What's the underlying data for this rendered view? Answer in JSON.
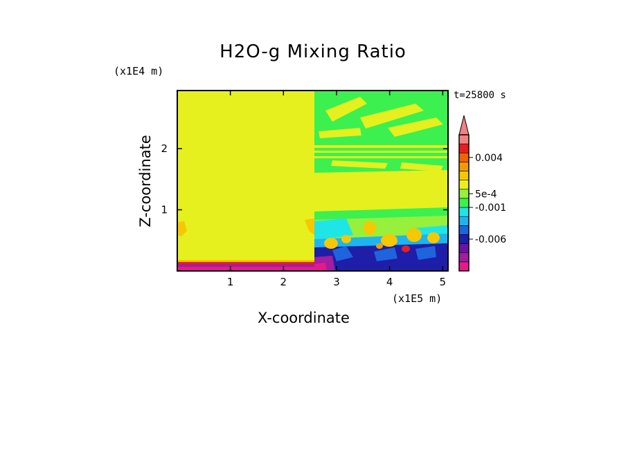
{
  "chart_data": {
    "type": "heatmap",
    "title": "H2O-g Mixing Ratio",
    "xlabel": "X-coordinate",
    "ylabel": "Z-coordinate",
    "x_unit": "(x1E5 m)",
    "y_unit": "(x1E4 m)",
    "time_label": "t=25800 s",
    "xlim": [
      0,
      5.1
    ],
    "ylim": [
      0,
      2.95
    ],
    "x_ticks": [
      "1",
      "2",
      "3",
      "4",
      "5"
    ],
    "y_ticks": [
      "1",
      "2"
    ],
    "colorbar": {
      "labels": [
        "0.004",
        "5e-4",
        "-0.001",
        "-0.006"
      ],
      "colors": [
        "#e6198c",
        "#a01ea0",
        "#6a14a6",
        "#1e1ea8",
        "#1e64dc",
        "#1eb4f0",
        "#1ee6e6",
        "#3cf050",
        "#96f03c",
        "#e6f01e",
        "#f5c800",
        "#f09c00",
        "#f06400",
        "#e61e1e",
        "#f08282"
      ],
      "extend_top": true
    },
    "regions": [
      {
        "name": "left-domain",
        "x": [
          0,
          2.55
        ],
        "z": [
          0.15,
          2.95
        ],
        "dominant_value": "5e-4"
      },
      {
        "name": "right-domain",
        "x": [
          2.55,
          5.1
        ],
        "z": [
          0,
          2.95
        ],
        "dominant_value": "-0.001"
      }
    ]
  }
}
